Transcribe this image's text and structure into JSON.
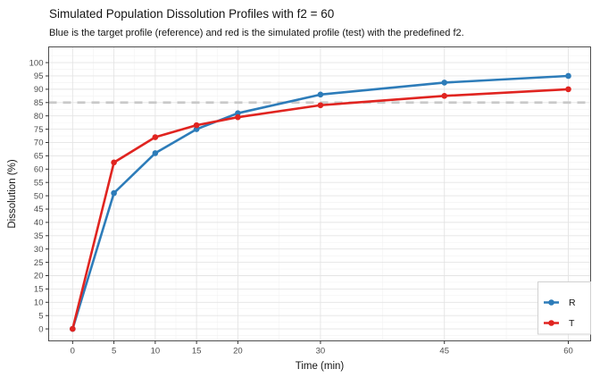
{
  "header": {
    "title": "Simulated Population Dissolution Profiles with f2 = 60",
    "subtitle": "Blue is the target profile (reference) and red is the simulated profile (test) with the predefined f2."
  },
  "chart_data": {
    "type": "line",
    "title": "Simulated Population Dissolution Profiles with f2 = 60",
    "subtitle": "Blue is the target profile (reference) and red is the simulated profile (test) with the predefined f2.",
    "xlabel": "Time (min)",
    "ylabel": "Dissolution (%)",
    "x": [
      0,
      5,
      10,
      15,
      20,
      30,
      45,
      60
    ],
    "series": [
      {
        "name": "R",
        "color": "#2d7cb9",
        "values": [
          0,
          51,
          66,
          75,
          81,
          88,
          92.5,
          95
        ]
      },
      {
        "name": "T",
        "color": "#e02420",
        "values": [
          0,
          62.5,
          72,
          76.5,
          79.5,
          84,
          87.5,
          90
        ]
      }
    ],
    "x_ticks": [
      0,
      5,
      10,
      15,
      20,
      30,
      45,
      60
    ],
    "y_ticks": [
      0,
      5,
      10,
      15,
      20,
      25,
      30,
      35,
      40,
      45,
      50,
      55,
      60,
      65,
      70,
      75,
      80,
      85,
      90,
      95,
      100
    ],
    "xlim": [
      -2.9,
      62.7
    ],
    "ylim": [
      -4.5,
      105.9
    ],
    "grid": true,
    "reference_line": {
      "y": 85,
      "color": "#c9c9c9",
      "style": "dashed"
    },
    "legend": {
      "position": "bottom-right",
      "entries": [
        "R",
        "T"
      ]
    },
    "panel": {
      "border_color": "#4d4d4d",
      "grid_major_color": "#e4e4e4",
      "grid_minor_color": "#f2f2f2",
      "tick_color": "#333333",
      "tick_label_color": "#4d4d4d",
      "legend_border_color": "#d0d0d0",
      "legend_bg": "#ffffff"
    }
  }
}
